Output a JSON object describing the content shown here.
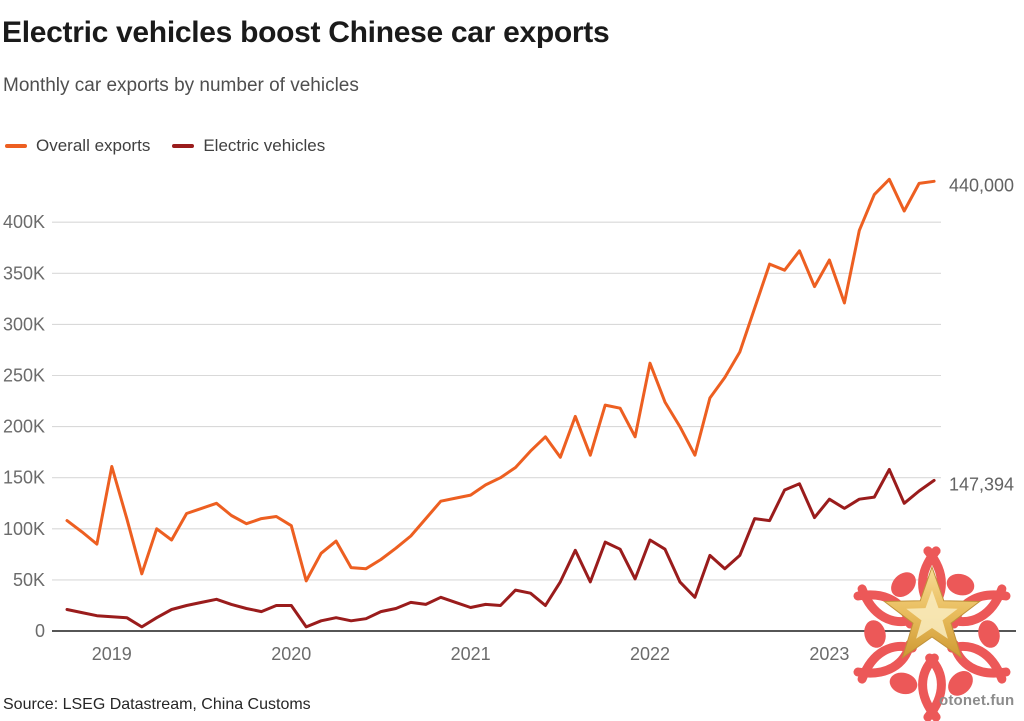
{
  "chart_data": {
    "type": "line",
    "title": "Electric vehicles boost Chinese car exports",
    "subtitle": "Monthly car exports by number of vehicles",
    "source": "Source: LSEG Datastream, China Customs",
    "legend_position": "top-left",
    "grid": "horizontal",
    "x_unit": "month",
    "ylim": [
      0,
      450000
    ],
    "xtick_labels": [
      "2019",
      "2020",
      "2021",
      "2022",
      "2023"
    ],
    "ytick_labels": [
      "0",
      "50K",
      "100K",
      "150K",
      "200K",
      "250K",
      "300K",
      "350K",
      "400K"
    ],
    "ytick_values": [
      0,
      50000,
      100000,
      150000,
      200000,
      250000,
      300000,
      350000,
      400000
    ],
    "months": [
      "2018-10",
      "2018-11",
      "2018-12",
      "2019-01",
      "2019-02",
      "2019-03",
      "2019-04",
      "2019-05",
      "2019-06",
      "2019-07",
      "2019-08",
      "2019-09",
      "2019-10",
      "2019-11",
      "2019-12",
      "2020-01",
      "2020-02",
      "2020-03",
      "2020-04",
      "2020-05",
      "2020-06",
      "2020-07",
      "2020-08",
      "2020-09",
      "2020-10",
      "2020-11",
      "2020-12",
      "2021-01",
      "2021-02",
      "2021-03",
      "2021-04",
      "2021-05",
      "2021-06",
      "2021-07",
      "2021-08",
      "2021-09",
      "2021-10",
      "2021-11",
      "2021-12",
      "2022-01",
      "2022-02",
      "2022-03",
      "2022-04",
      "2022-05",
      "2022-06",
      "2022-07",
      "2022-08",
      "2022-09",
      "2022-10",
      "2022-11",
      "2022-12",
      "2023-01",
      "2023-02",
      "2023-03",
      "2023-04",
      "2023-05",
      "2023-06",
      "2023-07",
      "2023-08"
    ],
    "series": [
      {
        "name": "Overall exports",
        "color": "#ed5f21",
        "end_label": "440,000",
        "values": [
          108000,
          97000,
          85000,
          161000,
          110000,
          56000,
          100000,
          89000,
          115000,
          120000,
          125000,
          113000,
          105000,
          110000,
          112000,
          103000,
          49000,
          76000,
          88000,
          62000,
          61000,
          70000,
          81000,
          93000,
          110000,
          127000,
          130000,
          133000,
          143000,
          150000,
          160000,
          176000,
          190000,
          170000,
          210000,
          172000,
          221000,
          218000,
          190000,
          262000,
          224000,
          200000,
          172000,
          228000,
          248000,
          273000,
          316000,
          359000,
          353000,
          372000,
          337000,
          363000,
          321000,
          392000,
          427000,
          442000,
          411000,
          438000,
          440000
        ]
      },
      {
        "name": "Electric vehicles",
        "color": "#9a1c1c",
        "end_label": "147,394",
        "values": [
          21000,
          18000,
          15000,
          14000,
          13000,
          4000,
          13000,
          21000,
          25000,
          28000,
          31000,
          26000,
          22000,
          19000,
          25000,
          25000,
          4000,
          10000,
          13000,
          10000,
          12000,
          19000,
          22000,
          28000,
          26000,
          33000,
          28000,
          23000,
          26000,
          25000,
          40000,
          37000,
          25000,
          48000,
          79000,
          48000,
          87000,
          80000,
          51000,
          89000,
          80000,
          48000,
          33000,
          74000,
          61000,
          74000,
          110000,
          108000,
          138000,
          144000,
          111000,
          129000,
          120000,
          129000,
          131000,
          158000,
          125000,
          137000,
          147394
        ]
      }
    ]
  },
  "watermark": {
    "text": "otonet.fun"
  }
}
